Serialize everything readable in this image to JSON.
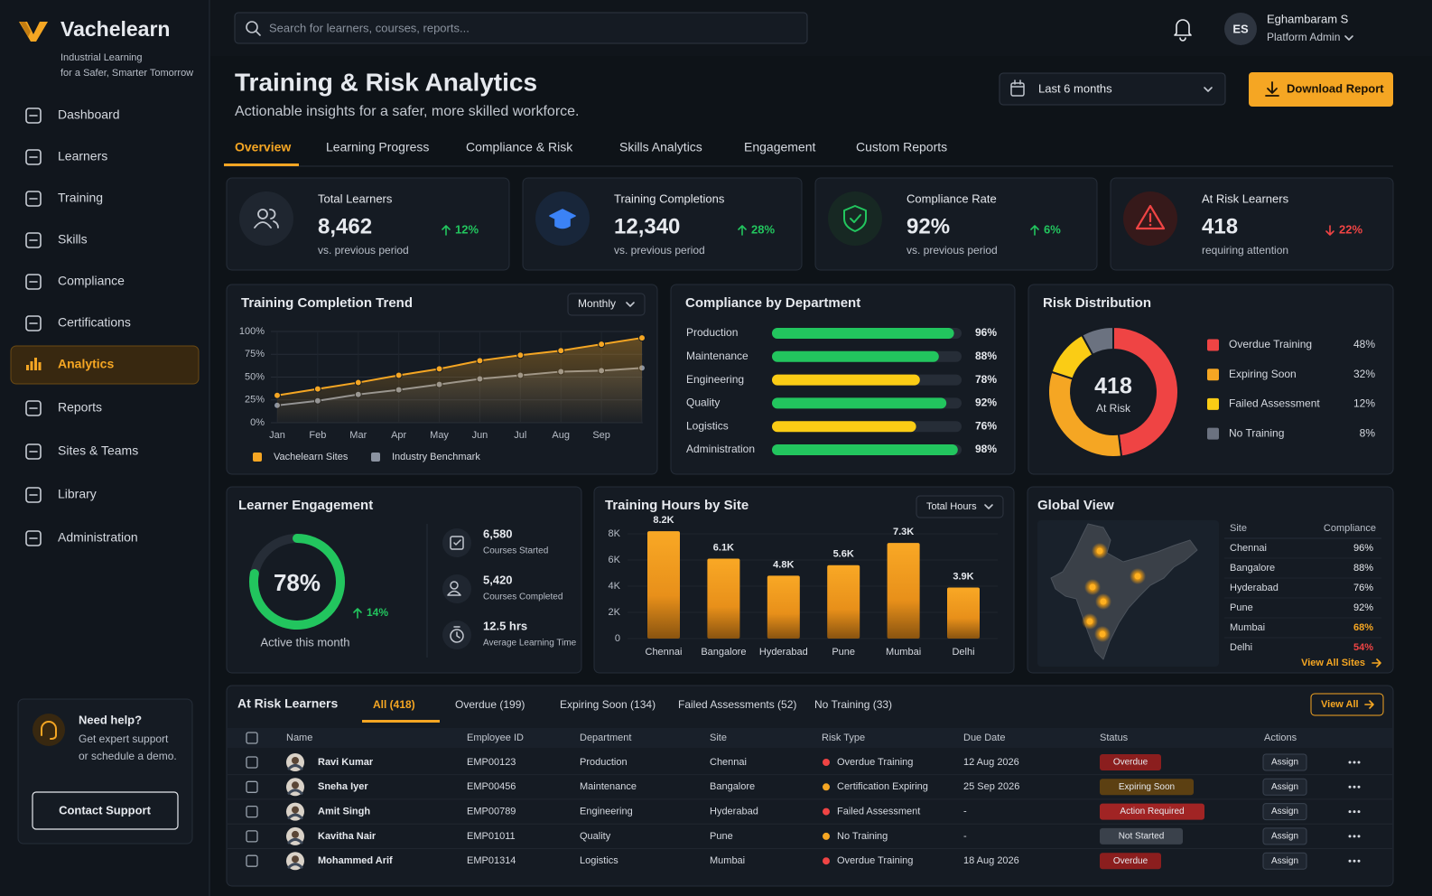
{
  "brand": {
    "name": "Vachelearn",
    "tagline": [
      "Industrial Learning",
      "for a Safer, Smarter Tomorrow"
    ]
  },
  "nav": {
    "items": [
      "Dashboard",
      "Learners",
      "Training",
      "Skills",
      "Compliance",
      "Certifications",
      "Analytics",
      "Reports",
      "Sites & Teams",
      "Library",
      "Administration"
    ],
    "active": 6
  },
  "help": {
    "title": "Need help?",
    "lines": [
      "Get expert support",
      "or schedule a demo."
    ],
    "button": "Contact Support"
  },
  "search": {
    "placeholder": "Search for learners, courses, reports..."
  },
  "user": {
    "initials": "ES",
    "name": "Eghambaram S",
    "role": "Platform Admin"
  },
  "header": {
    "title": "Training & Risk Analytics",
    "subtitle": "Actionable insights for a safer, more skilled workforce.",
    "period": "Last 6 months",
    "download": "Download Report"
  },
  "tabs": {
    "items": [
      "Overview",
      "Learning Progress",
      "Compliance & Risk",
      "Skills Analytics",
      "Engagement",
      "Custom Reports"
    ],
    "active": 0
  },
  "kpis": [
    {
      "label": "Total Learners",
      "value": "8,462",
      "change": "12%",
      "direction": "up",
      "note": "vs. previous period"
    },
    {
      "label": "Training Completions",
      "value": "12,340",
      "change": "28%",
      "direction": "up",
      "note": "vs. previous period"
    },
    {
      "label": "Compliance Rate",
      "value": "92%",
      "change": "6%",
      "direction": "up",
      "note": "vs. previous period"
    },
    {
      "label": "At Risk Learners",
      "value": "418",
      "change": "22%",
      "direction": "down",
      "note": "requiring attention"
    }
  ],
  "trend": {
    "type": "line",
    "title": "Training Completion Trend",
    "control": "Monthly",
    "categories": [
      "Jan",
      "Feb",
      "Mar",
      "Apr",
      "May",
      "Jun",
      "Jul",
      "Aug",
      "Sep",
      null
    ],
    "ylim": [
      0,
      100
    ],
    "yticks": [
      {
        "value": 0,
        "label": "0%"
      },
      {
        "value": 25,
        "label": "25%"
      },
      {
        "value": 50,
        "label": "50%"
      },
      {
        "value": 75,
        "label": "75%"
      },
      {
        "value": 100,
        "label": "100%"
      }
    ],
    "series": [
      {
        "name": "Vachelearn Sites",
        "color": "#f5a623",
        "values": [
          30,
          37,
          44,
          52,
          59,
          68,
          74,
          79,
          86,
          93
        ]
      },
      {
        "name": "Industry Benchmark",
        "color": "#8b93a1",
        "values": [
          19,
          24,
          31,
          36,
          42,
          48,
          52,
          56,
          57,
          60
        ]
      }
    ]
  },
  "compliance": {
    "type": "bar",
    "title": "Compliance by Department",
    "categories": [
      "Production",
      "Maintenance",
      "Engineering",
      "Quality",
      "Logistics",
      "Administration"
    ],
    "values": [
      96,
      88,
      78,
      92,
      76,
      98
    ],
    "value_labels": [
      "96%",
      "88%",
      "78%",
      "92%",
      "76%",
      "98%"
    ],
    "colors": [
      "#22c55e",
      "#22c55e",
      "#facc15",
      "#22c55e",
      "#facc15",
      "#22c55e"
    ],
    "xlim": [
      0,
      100
    ]
  },
  "risk": {
    "type": "pie",
    "title": "Risk Distribution",
    "center_value": "418",
    "center_label": "At Risk",
    "categories": [
      "Overdue Training",
      "Expiring Soon",
      "Failed Assessment",
      "No Training"
    ],
    "values": [
      48,
      32,
      12,
      8
    ],
    "value_labels": [
      "48%",
      "32%",
      "12%",
      "8%"
    ],
    "colors": [
      "#ef4444",
      "#f5a623",
      "#facc15",
      "#6b7280"
    ]
  },
  "engagement": {
    "title": "Learner Engagement",
    "value": 78,
    "value_label": "78%",
    "change": "14%",
    "caption": "Active this month",
    "stats": [
      {
        "value": "6,580",
        "label": "Courses Started"
      },
      {
        "value": "5,420",
        "label": "Courses Completed"
      },
      {
        "value": "12.5 hrs",
        "label": "Average Learning Time"
      }
    ]
  },
  "hours": {
    "type": "bar",
    "title": "Training Hours by Site",
    "control": "Total Hours",
    "categories": [
      "Chennai",
      "Bangalore",
      "Hyderabad",
      "Pune",
      "Mumbai",
      "Delhi"
    ],
    "values": [
      8200,
      6100,
      4800,
      5600,
      7300,
      3900
    ],
    "value_labels": [
      "8.2K",
      "6.1K",
      "4.8K",
      "5.6K",
      "7.3K",
      "3.9K"
    ],
    "color": "#f5a623",
    "ylim": [
      0,
      8000
    ],
    "yticks": [
      0,
      {
        "value": 2000,
        "label": "2K"
      },
      {
        "value": 4000,
        "label": "4K"
      },
      {
        "value": 6000,
        "label": "6K"
      },
      {
        "value": 8000,
        "label": "8K"
      }
    ]
  },
  "global": {
    "title": "Global View",
    "columns": [
      "Site",
      "Compliance"
    ],
    "rows": [
      {
        "site": "Chennai",
        "compliance": "96%",
        "color": "#e6e9ee"
      },
      {
        "site": "Bangalore",
        "compliance": "88%",
        "color": "#e6e9ee"
      },
      {
        "site": "Hyderabad",
        "compliance": "76%",
        "color": "#e6e9ee"
      },
      {
        "site": "Pune",
        "compliance": "92%",
        "color": "#e6e9ee"
      },
      {
        "site": "Mumbai",
        "compliance": "68%",
        "color": "#f5a623"
      },
      {
        "site": "Delhi",
        "compliance": "54%",
        "color": "#ef4444"
      }
    ],
    "link": "View All Sites"
  },
  "atrisk": {
    "title": "At Risk Learners",
    "filters": [
      "All (418)",
      "Overdue (199)",
      "Expiring Soon (134)",
      "Failed Assessments (52)",
      "No Training (33)"
    ],
    "active_filter": 0,
    "view_all": "View All",
    "columns": [
      "Name",
      "Employee ID",
      "Department",
      "Site",
      "Risk Type",
      "Due Date",
      "Status",
      "Actions"
    ],
    "rows": [
      {
        "name": "Ravi Kumar",
        "id": "EMP00123",
        "department": "Production",
        "site": "Chennai",
        "risk": "Overdue Training",
        "risk_color": "#ef4444",
        "due": "12 Aug 2026",
        "status": "Overdue",
        "status_color": "#8b1e1e",
        "action": "Assign"
      },
      {
        "name": "Sneha Iyer",
        "id": "EMP00456",
        "department": "Maintenance",
        "site": "Bangalore",
        "risk": "Certification Expiring",
        "risk_color": "#f5a623",
        "due": "25 Sep 2026",
        "status": "Expiring Soon",
        "status_color": "#5c4012",
        "action": "Assign"
      },
      {
        "name": "Amit Singh",
        "id": "EMP00789",
        "department": "Engineering",
        "site": "Hyderabad",
        "risk": "Failed Assessment",
        "risk_color": "#ef4444",
        "due": "-",
        "status": "Action Required",
        "status_color": "#a12424",
        "action": "Assign"
      },
      {
        "name": "Kavitha Nair",
        "id": "EMP01011",
        "department": "Quality",
        "site": "Pune",
        "risk": "No Training",
        "risk_color": "#f5a623",
        "due": "-",
        "status": "Not Started",
        "status_color": "#3a414b",
        "action": "Assign"
      },
      {
        "name": "Mohammed Arif",
        "id": "EMP01314",
        "department": "Logistics",
        "site": "Mumbai",
        "risk": "Overdue Training",
        "risk_color": "#ef4444",
        "due": "18 Aug 2026",
        "status": "Overdue",
        "status_color": "#8b1e1e",
        "action": "Assign"
      }
    ]
  }
}
